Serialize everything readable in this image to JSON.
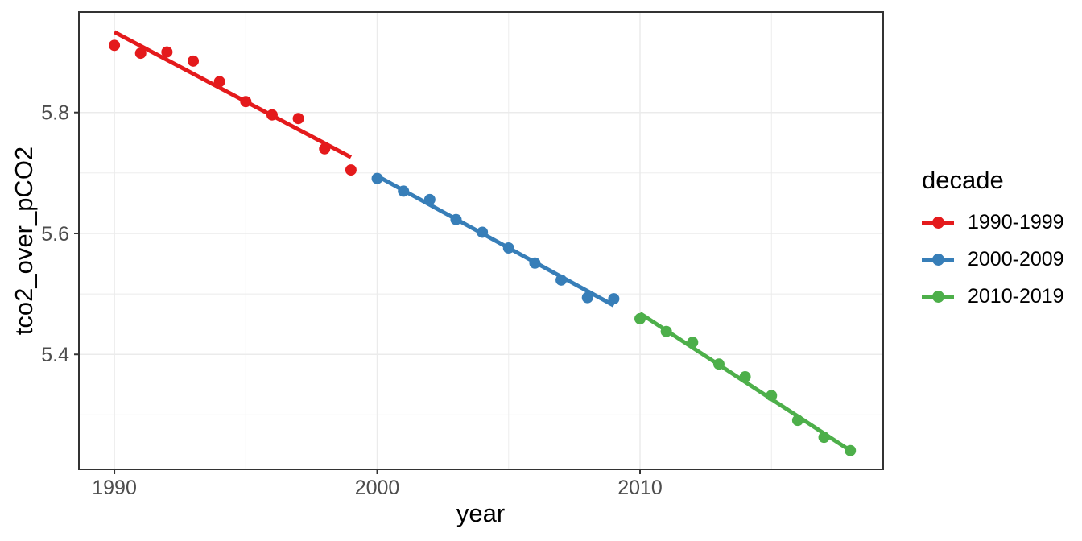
{
  "figure": {
    "x_axis_title": "year",
    "y_axis_title": "tco2_over_pCO2",
    "legend_title": "decade"
  },
  "chart_data": {
    "type": "scatter",
    "title": "",
    "xlabel": "year",
    "ylabel": "tco2_over_pCO2",
    "legend_title": "decade",
    "legend_position": "right",
    "grid": true,
    "xlim": [
      1988.65,
      2019.25
    ],
    "ylim": [
      5.21,
      5.966
    ],
    "x_axis": {
      "ticks": [
        {
          "value": 1990,
          "label": "1990"
        },
        {
          "value": 2000,
          "label": "2000"
        },
        {
          "value": 2010,
          "label": "2010"
        }
      ],
      "minor": [
        1995,
        2005,
        2015
      ]
    },
    "y_axis": {
      "ticks": [
        {
          "value": 5.4,
          "label": "5.4"
        },
        {
          "value": 5.6,
          "label": "5.6"
        },
        {
          "value": 5.8,
          "label": "5.8"
        }
      ],
      "minor": [
        5.3,
        5.5,
        5.7,
        5.9
      ]
    },
    "series": [
      {
        "name": "1990-1999",
        "color": "#E41A1C",
        "x": [
          1990,
          1991,
          1992,
          1993,
          1994,
          1995,
          1996,
          1997,
          1998,
          1999
        ],
        "y": [
          5.911,
          5.898,
          5.9,
          5.885,
          5.851,
          5.818,
          5.796,
          5.79,
          5.74,
          5.705
        ],
        "fit": {
          "x1": 1990,
          "y1": 5.933,
          "x2": 1999,
          "y2": 5.726
        }
      },
      {
        "name": "2000-2009",
        "color": "#377EB8",
        "x": [
          2000,
          2001,
          2002,
          2003,
          2004,
          2005,
          2006,
          2007,
          2008,
          2009
        ],
        "y": [
          5.691,
          5.67,
          5.656,
          5.623,
          5.602,
          5.576,
          5.551,
          5.523,
          5.494,
          5.492
        ],
        "fit": {
          "x1": 2000,
          "y1": 5.695,
          "x2": 2009,
          "y2": 5.481
        }
      },
      {
        "name": "2010-2019",
        "color": "#4DAF4A",
        "x": [
          2010,
          2011,
          2012,
          2013,
          2014,
          2015,
          2016,
          2017,
          2018
        ],
        "y": [
          5.459,
          5.438,
          5.42,
          5.384,
          5.363,
          5.332,
          5.291,
          5.263,
          5.241
        ],
        "fit": {
          "x1": 2010,
          "y1": 5.468,
          "x2": 2018,
          "y2": 5.241
        }
      }
    ],
    "styles": {
      "point_radius": 7,
      "line_width": 5,
      "grid_color": "#EBEBEB",
      "panel_border_color": "#333333",
      "tick_color": "#333333",
      "tick_text_color": "#4D4D4D",
      "title_color": "#000000",
      "background": "#FFFFFF"
    }
  }
}
